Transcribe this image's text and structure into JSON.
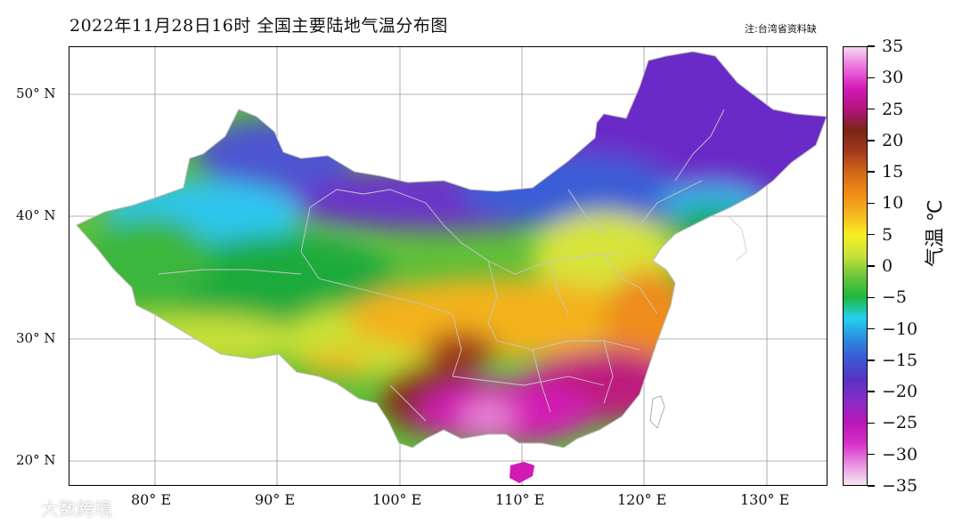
{
  "title": "2022年11月28日16时    全国主要陆地气温分布图",
  "note": "注:台湾省资料缺",
  "lat_labels": [
    "50° N",
    "40° N",
    "30° N",
    "20° N"
  ],
  "lon_labels": [
    "80° E",
    "90° E",
    "100° E",
    "110° E",
    "120° E",
    "130° E"
  ],
  "colorbar": {
    "title": "气温 ℃",
    "ticks": [
      "35",
      "30",
      "25",
      "20",
      "15",
      "10",
      "5",
      "0",
      "−5",
      "−10",
      "−15",
      "−20",
      "−25",
      "−30",
      "−35"
    ],
    "colors": [
      "#f6e6f4",
      "#e88ee0",
      "#d72ec9",
      "#b617b5",
      "#8b2bc6",
      "#5a32c0",
      "#3c55d4",
      "#2c8ae0",
      "#23d0f0",
      "#1fb83e",
      "#6bc43a",
      "#c8e23a",
      "#f6ef22",
      "#f6b51e",
      "#ef8a18",
      "#d2671a",
      "#a3391c",
      "#7a2514",
      "#b1147a",
      "#d418b6",
      "#eb6ddd",
      "#f6d6f0"
    ]
  },
  "watermark": "大数跨境"
}
